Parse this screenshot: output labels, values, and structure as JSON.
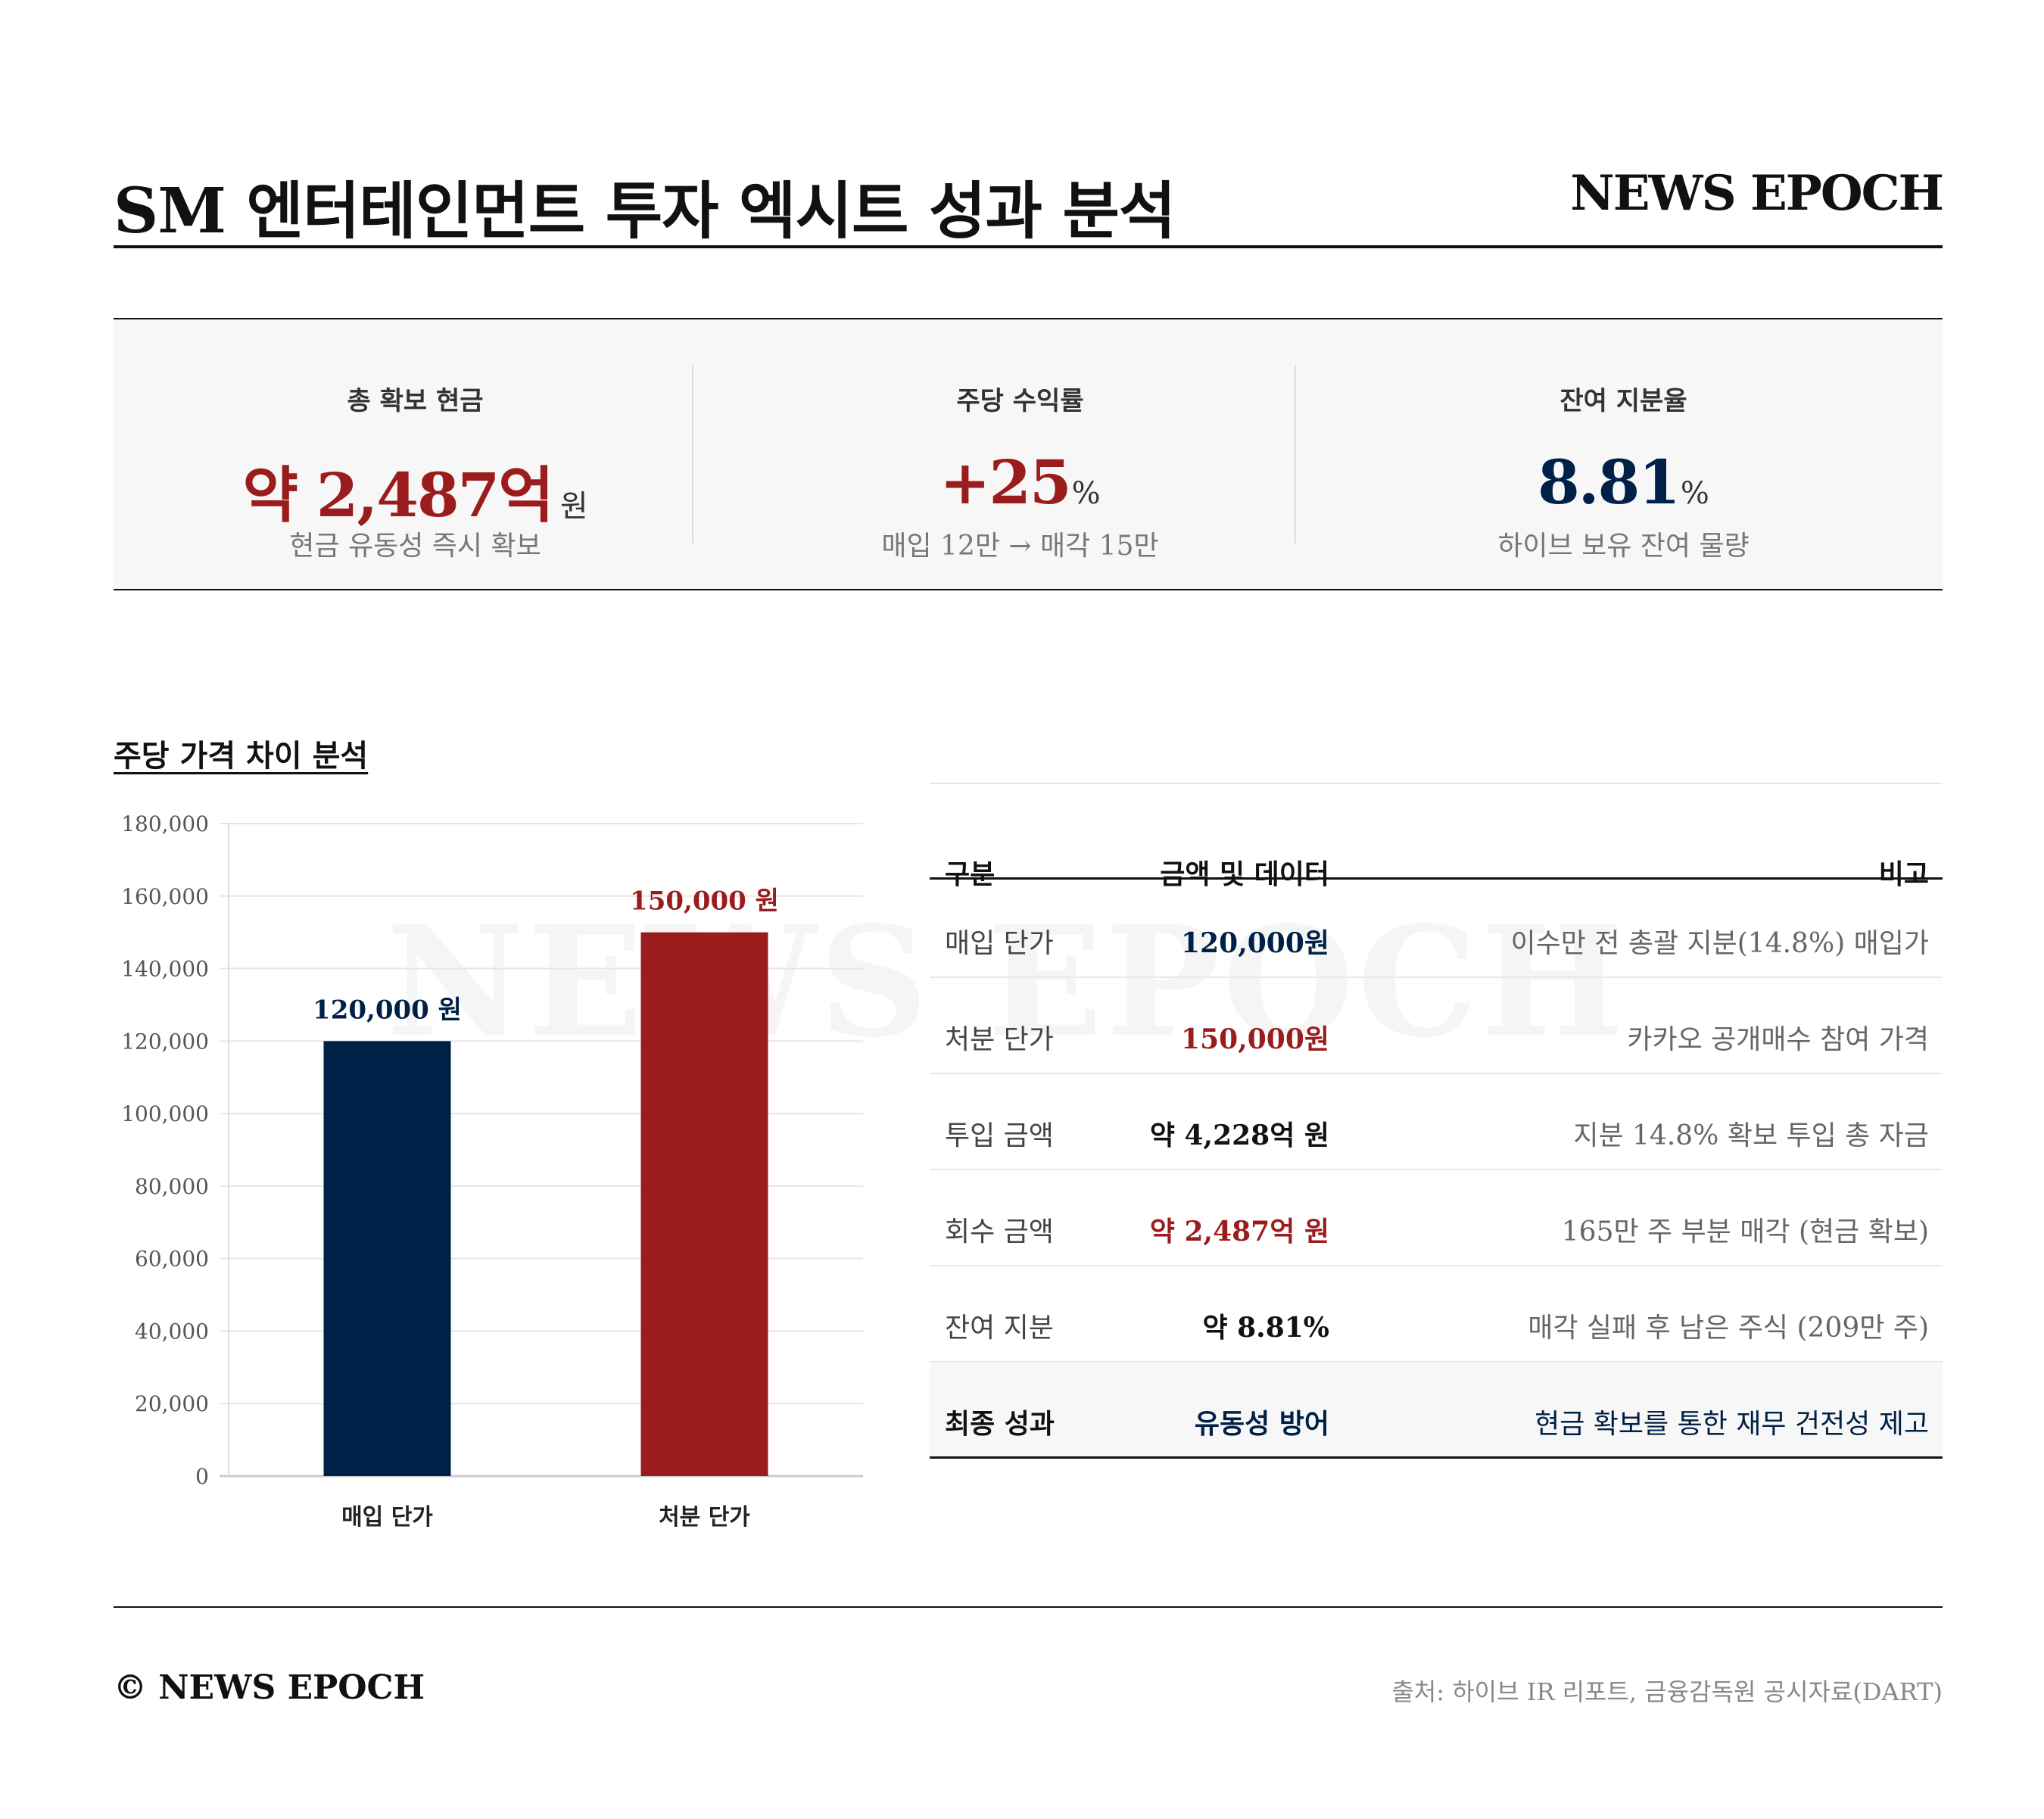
{
  "header": {
    "title": "SM 엔터테인먼트 투자 엑시트 성과 분석",
    "brand": "NEWS EPOCH"
  },
  "colors": {
    "navy": "#002147",
    "red": "#9b1c1c",
    "muted": "#777777",
    "panel": "#f7f7f7"
  },
  "kpis": [
    {
      "label": "총 확보 현금",
      "value": "약 2,487억",
      "unit": "원",
      "sub": "현금 유동성 즉시 확보",
      "color": "#9b1c1c"
    },
    {
      "label": "주당 수익률",
      "value": "+25",
      "unit": "%",
      "sub": "매입 12만 → 매각 15만",
      "color": "#9b1c1c"
    },
    {
      "label": "잔여 지분율",
      "value": "8.81",
      "unit": "%",
      "sub": "하이브 보유 잔여 물량",
      "color": "#002147"
    }
  ],
  "section_title": "주당 가격 차이 분석",
  "watermark": "NEWS EPOCH",
  "chart_data": {
    "type": "bar",
    "categories": [
      "매입 단가",
      "처분 단가"
    ],
    "values": [
      120000,
      150000
    ],
    "data_labels": [
      "120,000 원",
      "150,000 원"
    ],
    "colors": [
      "#002147",
      "#9b1c1c"
    ],
    "ylim": [
      0,
      180000
    ],
    "yticks": [
      0,
      20000,
      40000,
      60000,
      80000,
      100000,
      120000,
      140000,
      160000,
      180000
    ],
    "ytick_labels": [
      "0",
      "20,000",
      "40,000",
      "60,000",
      "80,000",
      "100,000",
      "120,000",
      "140,000",
      "160,000",
      "180,000"
    ],
    "grid": true,
    "title": "",
    "xlabel": "",
    "ylabel": ""
  },
  "table": {
    "headers": [
      "구분",
      "금액 및 데이터",
      "비고"
    ],
    "rows": [
      {
        "label": "매입 단가",
        "value": "120,000원",
        "note": "이수만 전 총괄 지분(14.8%) 매입가",
        "value_color": "#002147"
      },
      {
        "label": "처분 단가",
        "value": "150,000원",
        "note": "카카오 공개매수 참여 가격",
        "value_color": "#9b1c1c"
      },
      {
        "label": "투입 금액",
        "value": "약 4,228억 원",
        "note": "지분 14.8% 확보 투입 총 자금",
        "value_color": "#111111"
      },
      {
        "label": "회수 금액",
        "value": "약 2,487억 원",
        "note": "165만 주 부분 매각 (현금 확보)",
        "value_color": "#9b1c1c"
      },
      {
        "label": "잔여 지분",
        "value": "약 8.81%",
        "note": "매각 실패 후 남은 주식 (209만 주)",
        "value_color": "#111111"
      }
    ],
    "final": {
      "label": "최종 성과",
      "value": "유동성 방어",
      "note": "현금 확보를 통한 재무 건전성 제고"
    }
  },
  "footer": {
    "copyright": "© NEWS EPOCH",
    "source": "출처: 하이브 IR 리포트, 금융감독원 공시자료(DART)"
  }
}
